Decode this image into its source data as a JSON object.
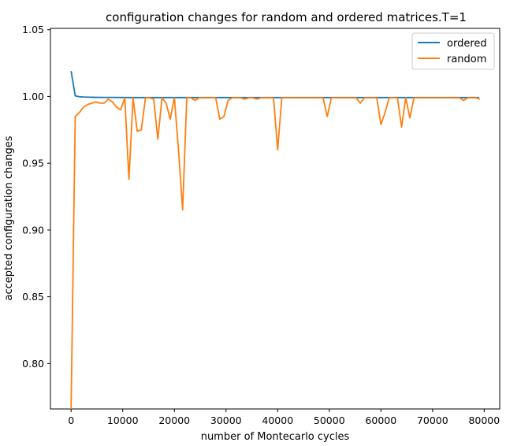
{
  "chart_data": {
    "type": "line",
    "title": "configuration changes for random and ordered matrices.T=1",
    "xlabel": "number of Montecarlo cycles",
    "ylabel": "accepted configuration changes",
    "xlim": [
      -4000,
      83000
    ],
    "ylim": [
      0.766,
      1.051
    ],
    "xticks": [
      0,
      10000,
      20000,
      30000,
      40000,
      50000,
      60000,
      70000,
      80000
    ],
    "yticks": [
      0.8,
      0.85,
      0.9,
      0.95,
      1.0,
      1.05
    ],
    "ytick_labels": [
      "0.80",
      "0.85",
      "0.90",
      "0.95",
      "1.00",
      "1.05"
    ],
    "grid": false,
    "legend_position": "top-right",
    "series": [
      {
        "name": "ordered",
        "color": "#1f77b4",
        "x": [
          0,
          800,
          1600,
          2400,
          3200,
          4000,
          6000,
          8000,
          12000,
          20000,
          40000,
          60000,
          79000
        ],
        "y": [
          1.019,
          1.0005,
          0.9998,
          0.9996,
          0.9995,
          0.9994,
          0.9993,
          0.9993,
          0.9992,
          0.9992,
          0.9992,
          0.9992,
          0.9992
        ]
      },
      {
        "name": "random",
        "color": "#ff7f0e",
        "x": [
          0,
          800,
          1600,
          2400,
          3200,
          4000,
          4800,
          5600,
          6400,
          7200,
          8000,
          8800,
          9600,
          10400,
          11200,
          12000,
          12800,
          13600,
          14400,
          15200,
          16000,
          16800,
          17600,
          18400,
          19200,
          20000,
          20800,
          21600,
          22400,
          23200,
          24000,
          24800,
          25600,
          26400,
          27200,
          28000,
          28800,
          29600,
          30400,
          31200,
          32000,
          32800,
          33600,
          34400,
          35200,
          36000,
          36800,
          37600,
          38400,
          39200,
          40000,
          40800,
          41600,
          42400,
          43200,
          44000,
          44800,
          45600,
          46400,
          47200,
          48000,
          48800,
          49600,
          50400,
          51200,
          52000,
          52800,
          53600,
          54400,
          55200,
          56000,
          56800,
          57600,
          58400,
          59200,
          60000,
          60800,
          61600,
          62400,
          63200,
          64000,
          64800,
          65600,
          66400,
          67200,
          68000,
          68800,
          69600,
          70400,
          71200,
          72000,
          72800,
          73600,
          74400,
          75200,
          76000,
          76800,
          77600,
          78400,
          79200
        ],
        "y": [
          0.766,
          0.985,
          0.988,
          0.992,
          0.994,
          0.995,
          0.996,
          0.995,
          0.995,
          0.998,
          0.996,
          0.992,
          0.99,
          0.999,
          0.938,
          0.999,
          0.974,
          0.975,
          0.999,
          0.999,
          0.998,
          0.968,
          0.999,
          0.995,
          0.983,
          0.999,
          0.96,
          0.915,
          0.999,
          0.999,
          0.997,
          0.999,
          0.999,
          0.999,
          0.999,
          0.999,
          0.983,
          0.985,
          0.997,
          0.999,
          0.999,
          0.999,
          0.998,
          0.999,
          0.999,
          0.998,
          0.999,
          0.999,
          0.999,
          0.999,
          0.96,
          0.999,
          0.999,
          0.999,
          0.999,
          0.999,
          0.999,
          0.999,
          0.999,
          0.999,
          0.999,
          0.999,
          0.985,
          0.999,
          0.999,
          0.999,
          0.999,
          0.999,
          0.999,
          0.999,
          0.995,
          0.999,
          0.999,
          0.999,
          0.999,
          0.979,
          0.988,
          0.999,
          0.999,
          0.999,
          0.977,
          0.999,
          0.984,
          0.999,
          0.999,
          0.999,
          0.999,
          0.999,
          0.999,
          0.999,
          0.999,
          0.999,
          0.999,
          0.999,
          0.999,
          0.997,
          0.999,
          0.999,
          0.999,
          0.998
        ]
      }
    ]
  }
}
